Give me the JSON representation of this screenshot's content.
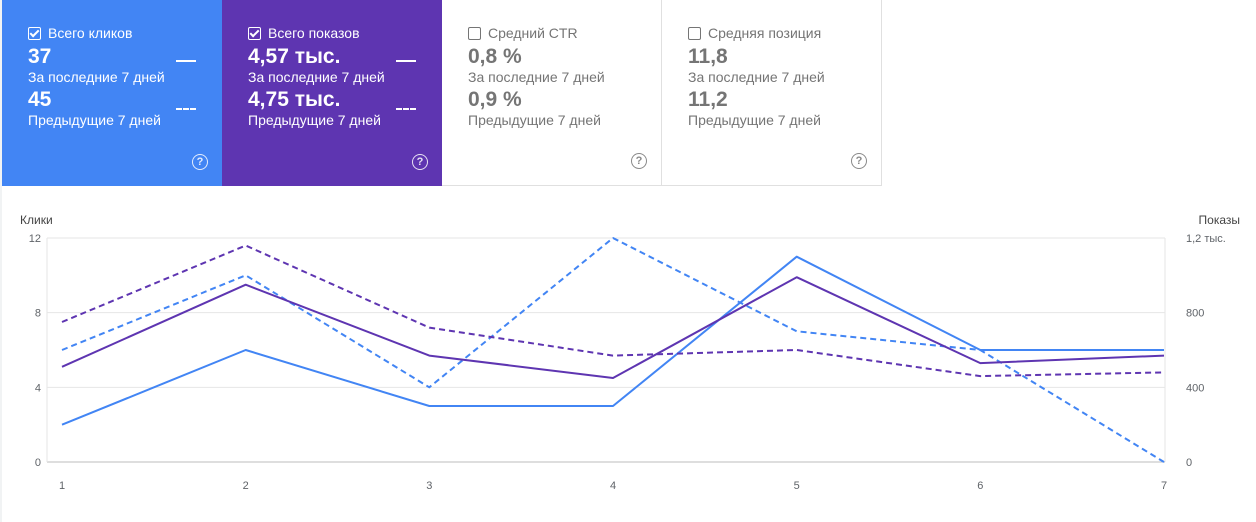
{
  "cards": [
    {
      "id": "clicks",
      "label": "Всего кликов",
      "checked": true,
      "current_value": "37",
      "current_label": "За последние 7 дней",
      "previous_value": "45",
      "previous_label": "Предыдущие 7 дней"
    },
    {
      "id": "impr",
      "label": "Всего показов",
      "checked": true,
      "current_value": "4,57 тыс.",
      "current_label": "За последние 7 дней",
      "previous_value": "4,75 тыс.",
      "previous_label": "Предыдущие 7 дней"
    },
    {
      "id": "ctr",
      "label": "Средний CTR",
      "checked": false,
      "current_value": "0,8 %",
      "current_label": "За последние 7 дней",
      "previous_value": "0,9 %",
      "previous_label": "Предыдущие 7 дней"
    },
    {
      "id": "pos",
      "label": "Средняя позиция",
      "checked": false,
      "current_value": "11,8",
      "current_label": "За последние 7 дней",
      "previous_value": "11,2",
      "previous_label": "Предыдущие 7 дней"
    }
  ],
  "help_icon": "help-circle-icon",
  "colors": {
    "clicks": "#4285f4",
    "impressions": "#5e35b1",
    "grid": "#e6e6e6"
  },
  "chart_data": {
    "type": "line",
    "x": [
      1,
      2,
      3,
      4,
      5,
      6,
      7
    ],
    "y_left_label": "Клики",
    "y_right_label": "Показы",
    "y_left_ticks": [
      "0",
      "4",
      "8",
      "12"
    ],
    "y_right_ticks": [
      "0",
      "400",
      "800",
      "1,2 тыс."
    ],
    "y_left_range": [
      0,
      12
    ],
    "y_right_range": [
      0,
      1200
    ],
    "x_ticks": [
      "1",
      "2",
      "3",
      "4",
      "5",
      "6",
      "7"
    ],
    "series": [
      {
        "metric": "clicks",
        "period": "current",
        "axis": "left",
        "values": [
          2,
          6,
          3,
          3,
          11,
          6,
          6
        ]
      },
      {
        "metric": "clicks",
        "period": "previous",
        "axis": "left",
        "values": [
          6,
          10,
          4,
          12,
          7,
          6,
          0
        ]
      },
      {
        "metric": "impressions",
        "period": "current",
        "axis": "right",
        "values": [
          510,
          950,
          570,
          450,
          990,
          530,
          570
        ]
      },
      {
        "metric": "impressions",
        "period": "previous",
        "axis": "right",
        "values": [
          750,
          1160,
          720,
          570,
          600,
          460,
          480
        ]
      }
    ],
    "grid": true
  }
}
